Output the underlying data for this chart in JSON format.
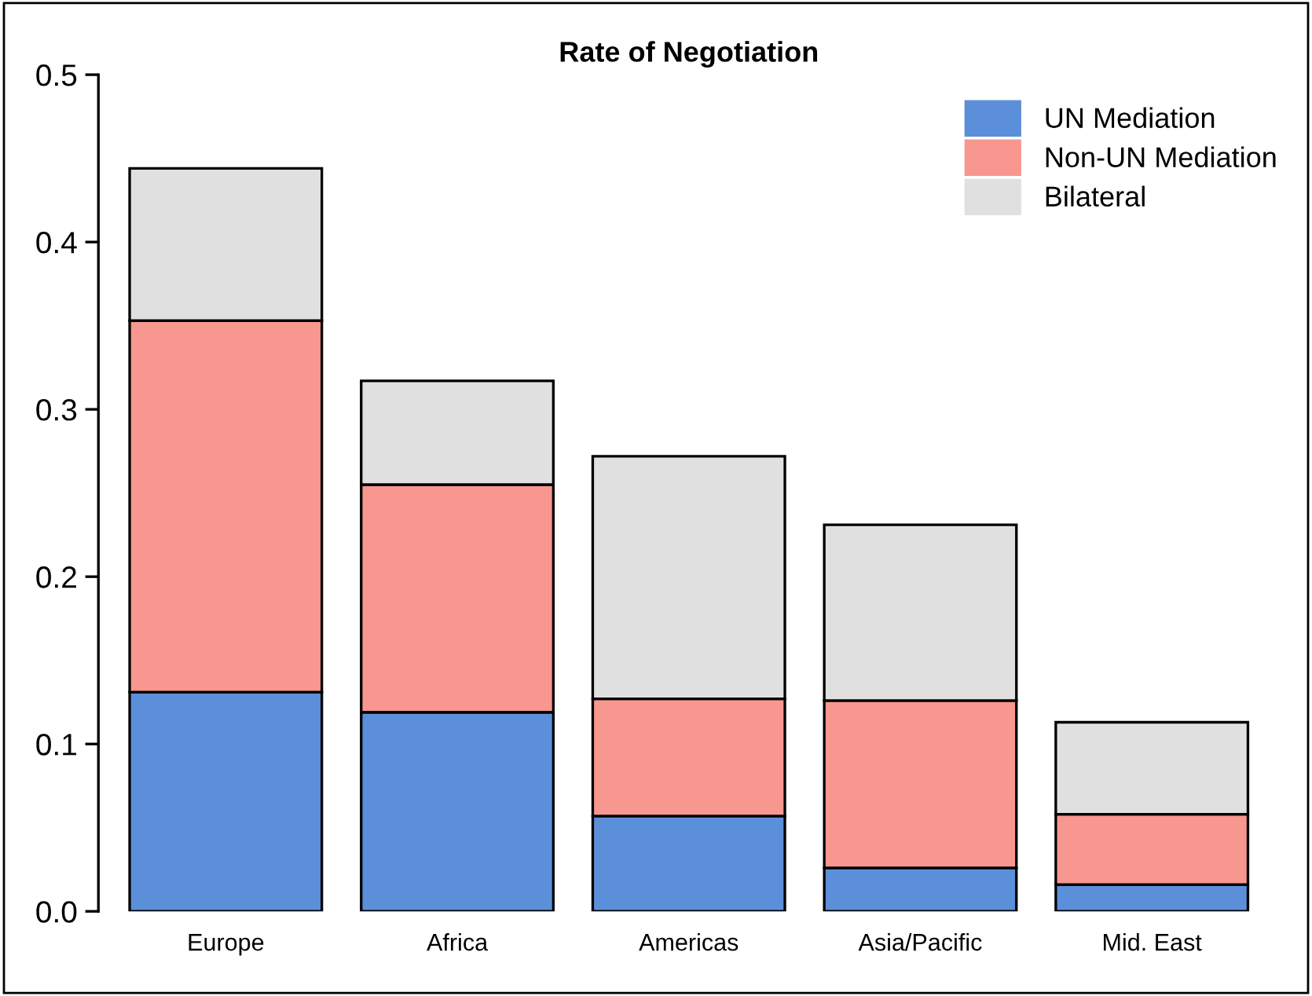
{
  "chart_data": {
    "type": "bar",
    "title": "Rate of Negotiation",
    "categories": [
      "Europe",
      "Africa",
      "Americas",
      "Asia/Pacific",
      "Mid. East"
    ],
    "stacked": true,
    "series": [
      {
        "name": "UN Mediation",
        "color": "#5b8fd9",
        "values": [
          0.131,
          0.119,
          0.057,
          0.026,
          0.016
        ]
      },
      {
        "name": "Non-UN Mediation",
        "color": "#f8978f",
        "values": [
          0.222,
          0.136,
          0.07,
          0.1,
          0.042
        ]
      },
      {
        "name": "Bilateral",
        "color": "#e0e0e0",
        "values": [
          0.091,
          0.062,
          0.145,
          0.105,
          0.055
        ]
      }
    ],
    "ylim": [
      0,
      0.5
    ],
    "yticks": [
      {
        "value": 0,
        "label": "0.0"
      },
      0.1,
      0.2,
      0.3,
      0.4,
      0.5
    ],
    "grid": false,
    "legend": "top right"
  }
}
